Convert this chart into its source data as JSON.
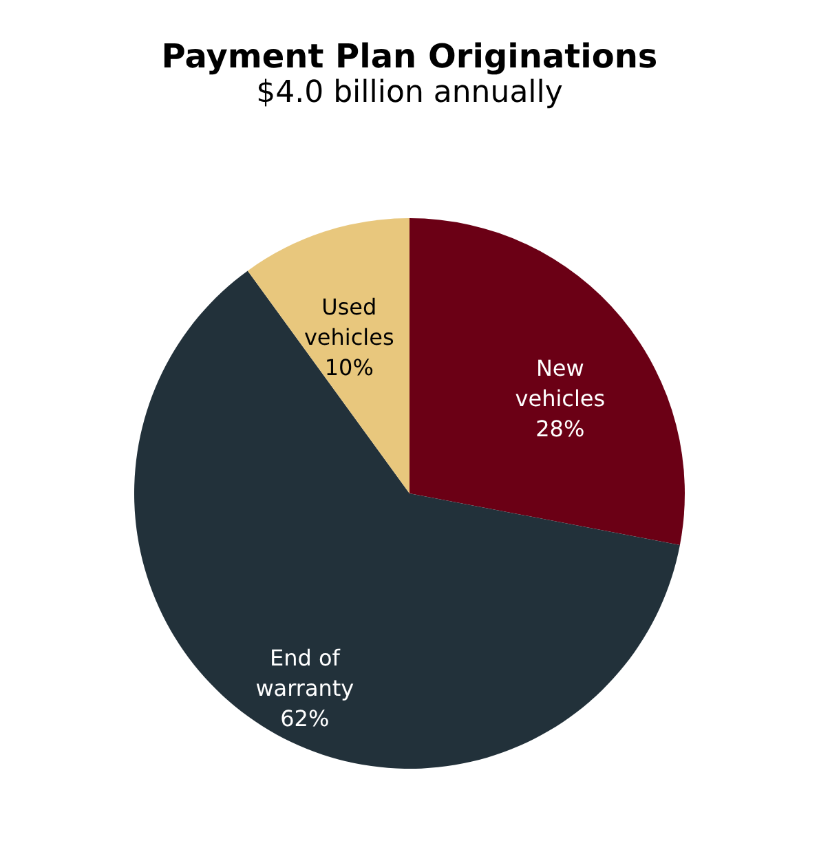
{
  "chart_data": {
    "type": "pie",
    "title": "Payment Plan Originations",
    "subtitle": "$4.0 billion annually",
    "categories": [
      "New vehicles",
      "End of warranty",
      "Used vehicles"
    ],
    "values": [
      28,
      62,
      10
    ],
    "colors": [
      "#6b0015",
      "#22313a",
      "#e8c77d"
    ],
    "value_labels": [
      "28%",
      "62%",
      "10%"
    ],
    "legend": false
  }
}
